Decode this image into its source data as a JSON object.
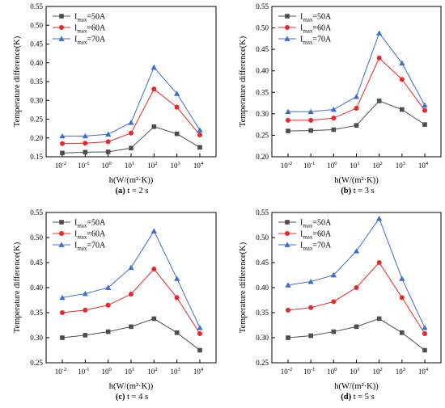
{
  "chart_data": [
    {
      "type": "line",
      "caption_id": "(a)",
      "caption_text": "t = 2 s",
      "xlabel": "h(W/(m²·K))",
      "ylabel": "Temperature difference(K)",
      "x": [
        0.01,
        0.1,
        1,
        10,
        100,
        1000,
        10000
      ],
      "x_tick_labels": [
        [
          "10",
          "-2"
        ],
        [
          "10",
          "-1"
        ],
        [
          "10",
          "0"
        ],
        [
          "10",
          "1"
        ],
        [
          "10",
          "2"
        ],
        [
          "10",
          "3"
        ],
        [
          "10",
          "4"
        ]
      ],
      "ylim": [
        0.15,
        0.55
      ],
      "y_ticks": [
        "0.15",
        "0.20",
        "0.25",
        "0.30",
        "0.35",
        "0.40",
        "0.45",
        "0.50",
        "0.55"
      ],
      "x_scale": "log",
      "legend_position": "top-left",
      "series": [
        {
          "name": "I",
          "sub": "max",
          "suffix": "=50A",
          "marker": "square",
          "color": "#4d4d4d",
          "values": [
            0.16,
            0.162,
            0.163,
            0.173,
            0.23,
            0.211,
            0.175
          ]
        },
        {
          "name": "I",
          "sub": "max",
          "suffix": "=60A",
          "marker": "circle",
          "color": "#e8282a",
          "values": [
            0.185,
            0.186,
            0.19,
            0.213,
            0.33,
            0.282,
            0.208
          ]
        },
        {
          "name": "I",
          "sub": "max",
          "suffix": "=70A",
          "marker": "triangle",
          "color": "#3a6fd0",
          "values": [
            0.205,
            0.205,
            0.21,
            0.241,
            0.388,
            0.318,
            0.221
          ]
        }
      ]
    },
    {
      "type": "line",
      "caption_id": "(b)",
      "caption_text": "t = 3 s",
      "xlabel": "h(W/(m²·K))",
      "ylabel": "Temperature difference(K)",
      "x": [
        0.01,
        0.1,
        1,
        10,
        100,
        1000,
        10000
      ],
      "x_tick_labels": [
        [
          "10",
          "-2"
        ],
        [
          "10",
          "-1"
        ],
        [
          "10",
          "0"
        ],
        [
          "10",
          "1"
        ],
        [
          "10",
          "2"
        ],
        [
          "10",
          "3"
        ],
        [
          "10",
          "4"
        ]
      ],
      "ylim": [
        0.2,
        0.55
      ],
      "y_ticks": [
        "0.20",
        "0.25",
        "0.30",
        "0.35",
        "0.40",
        "0.45",
        "0.50",
        "0.55"
      ],
      "x_scale": "log",
      "legend_position": "top-left",
      "series": [
        {
          "name": "I",
          "sub": "max",
          "suffix": "=50A",
          "marker": "square",
          "color": "#4d4d4d",
          "values": [
            0.26,
            0.261,
            0.263,
            0.273,
            0.33,
            0.31,
            0.275
          ]
        },
        {
          "name": "I",
          "sub": "max",
          "suffix": "=60A",
          "marker": "circle",
          "color": "#e8282a",
          "values": [
            0.285,
            0.285,
            0.29,
            0.313,
            0.43,
            0.38,
            0.308
          ]
        },
        {
          "name": "I",
          "sub": "max",
          "suffix": "=70A",
          "marker": "triangle",
          "color": "#3a6fd0",
          "values": [
            0.305,
            0.305,
            0.31,
            0.34,
            0.488,
            0.418,
            0.32
          ]
        }
      ]
    },
    {
      "type": "line",
      "caption_id": "(c)",
      "caption_text": "t = 4 s",
      "xlabel": "h(W/(m²·K))",
      "ylabel": "Temperature difference(K)",
      "x": [
        0.01,
        0.1,
        1,
        10,
        100,
        1000,
        10000
      ],
      "x_tick_labels": [
        [
          "10",
          "-2"
        ],
        [
          "10",
          "-1"
        ],
        [
          "10",
          "0"
        ],
        [
          "10",
          "1"
        ],
        [
          "10",
          "2"
        ],
        [
          "10",
          "3"
        ],
        [
          "10",
          "4"
        ]
      ],
      "ylim": [
        0.25,
        0.55
      ],
      "y_ticks": [
        "0.25",
        "0.30",
        "0.35",
        "0.40",
        "0.45",
        "0.50",
        "0.55"
      ],
      "x_scale": "log",
      "legend_position": "top-left",
      "series": [
        {
          "name": "I",
          "sub": "max",
          "suffix": "=50A",
          "marker": "square",
          "color": "#4d4d4d",
          "values": [
            0.3,
            0.305,
            0.312,
            0.322,
            0.338,
            0.31,
            0.275
          ]
        },
        {
          "name": "I",
          "sub": "max",
          "suffix": "=60A",
          "marker": "circle",
          "color": "#e8282a",
          "values": [
            0.35,
            0.355,
            0.365,
            0.387,
            0.437,
            0.38,
            0.308
          ]
        },
        {
          "name": "I",
          "sub": "max",
          "suffix": "=70A",
          "marker": "triangle",
          "color": "#3a6fd0",
          "values": [
            0.38,
            0.388,
            0.4,
            0.44,
            0.513,
            0.418,
            0.32
          ]
        }
      ]
    },
    {
      "type": "line",
      "caption_id": "(d)",
      "caption_text": "t = 5 s",
      "xlabel": "h(W/(m²·K))",
      "ylabel": "Temperature difference(K)",
      "x": [
        0.01,
        0.1,
        1,
        10,
        100,
        1000,
        10000
      ],
      "x_tick_labels": [
        [
          "10",
          "-2"
        ],
        [
          "10",
          "-1"
        ],
        [
          "10",
          "0"
        ],
        [
          "10",
          "1"
        ],
        [
          "10",
          "2"
        ],
        [
          "10",
          "3"
        ],
        [
          "10",
          "4"
        ]
      ],
      "ylim": [
        0.25,
        0.55
      ],
      "y_ticks": [
        "0.25",
        "0.30",
        "0.35",
        "0.40",
        "0.45",
        "0.50",
        "0.55"
      ],
      "x_scale": "log",
      "legend_position": "top-left",
      "series": [
        {
          "name": "I",
          "sub": "max",
          "suffix": "=50A",
          "marker": "square",
          "color": "#4d4d4d",
          "values": [
            0.3,
            0.304,
            0.312,
            0.322,
            0.338,
            0.31,
            0.275
          ]
        },
        {
          "name": "I",
          "sub": "max",
          "suffix": "=60A",
          "marker": "circle",
          "color": "#e8282a",
          "values": [
            0.355,
            0.36,
            0.372,
            0.4,
            0.45,
            0.38,
            0.308
          ]
        },
        {
          "name": "I",
          "sub": "max",
          "suffix": "=70A",
          "marker": "triangle",
          "color": "#3a6fd0",
          "values": [
            0.405,
            0.412,
            0.425,
            0.473,
            0.538,
            0.418,
            0.32
          ]
        }
      ]
    }
  ]
}
